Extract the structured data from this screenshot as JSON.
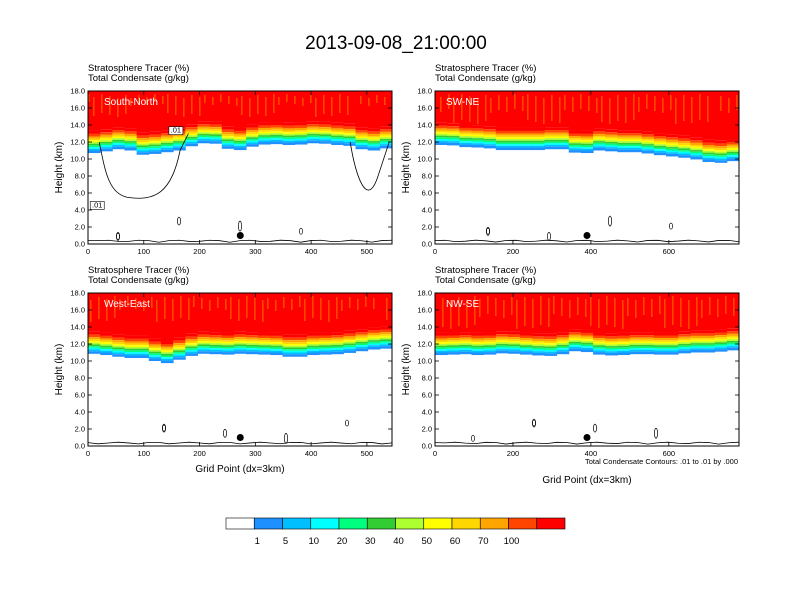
{
  "figure": {
    "title": "2013-09-08_21:00:00",
    "xaxis_label": "Grid Point (dx=3km)",
    "yaxis_label": "Height (km)",
    "contour_note": "Total Condensate Contours: .01 to .01 by .000"
  },
  "colorbar": {
    "colors": [
      "#ffffff",
      "#1e90ff",
      "#00bfff",
      "#00ffff",
      "#00ff7f",
      "#32cd32",
      "#adff2f",
      "#ffff00",
      "#ffd700",
      "#ffa500",
      "#ff4500",
      "#ff0000"
    ],
    "labels": [
      "1",
      "5",
      "10",
      "20",
      "30",
      "40",
      "50",
      "60",
      "70",
      "100"
    ]
  },
  "chart_data": [
    {
      "type": "heatmap",
      "region": "South-North",
      "title_lines": [
        "Stratosphere Tracer   (%)",
        "Total Condensate   (g/kg)"
      ],
      "xlim": [
        0,
        545
      ],
      "xticks": [
        "0",
        "100",
        "200",
        "300",
        "400",
        "500"
      ],
      "ylim": [
        0,
        18
      ],
      "yticks": [
        "0.0",
        "2.0",
        "4.0",
        "6.0",
        "8.0",
        "10.0",
        "12.0",
        "14.0",
        "16.0",
        "18.0"
      ],
      "tropopause_km": [
        13.2,
        13.4,
        13.6,
        13.9,
        13.3,
        12.9,
        13.5,
        13.3,
        13.9,
        14.3,
        14.6,
        14.2,
        13.4,
        13.9,
        14.2,
        14.4,
        14.3,
        14.2,
        14.4,
        14.5,
        14.3,
        14.2,
        14.1,
        13.4,
        13.8,
        13.9
      ],
      "contour_labels": [
        ".01",
        ".01"
      ],
      "marker": {
        "x": 273,
        "y": 1.0
      }
    },
    {
      "type": "heatmap",
      "region": "SW-NE",
      "title_lines": [
        "Stratosphere Tracer   (%)",
        "Total Condensate   (g/kg)"
      ],
      "xlim": [
        0,
        780
      ],
      "xticks": [
        "0",
        "200",
        "400",
        "600"
      ],
      "ylim": [
        0,
        18
      ],
      "yticks": [
        "0.0",
        "2.0",
        "4.0",
        "6.0",
        "8.0",
        "10.0",
        "12.0",
        "14.0",
        "16.0",
        "18.0"
      ],
      "tropopause_km": [
        14.2,
        14.3,
        14.1,
        13.9,
        14.0,
        13.7,
        13.6,
        13.7,
        13.6,
        13.7,
        13.8,
        13.7,
        13.0,
        13.6,
        13.6,
        13.4,
        13.4,
        13.4,
        13.1,
        13.0,
        12.8,
        12.7,
        12.4,
        12.1,
        12.2,
        12.5
      ],
      "contour_labels": [],
      "marker": {
        "x": 390,
        "y": 1.0
      }
    },
    {
      "type": "heatmap",
      "region": "West-East",
      "title_lines": [
        "Stratosphere Tracer   (%)",
        "Total Condensate   (g/kg)"
      ],
      "xlim": [
        0,
        545
      ],
      "xticks": [
        "0",
        "100",
        "200",
        "300",
        "400",
        "500"
      ],
      "ylim": [
        0,
        18
      ],
      "yticks": [
        "0.0",
        "2.0",
        "4.0",
        "6.0",
        "8.0",
        "10.0",
        "12.0",
        "14.0",
        "16.0",
        "18.0"
      ],
      "tropopause_km": [
        13.5,
        13.4,
        13.2,
        13.0,
        12.9,
        13.0,
        12.2,
        12.5,
        13.0,
        13.4,
        13.5,
        13.3,
        13.4,
        13.5,
        13.3,
        13.4,
        13.2,
        13.0,
        13.2,
        13.4,
        13.3,
        13.5,
        13.6,
        13.9,
        14.0,
        14.1
      ],
      "contour_labels": [],
      "marker": {
        "x": 273,
        "y": 1.0
      }
    },
    {
      "type": "heatmap",
      "region": "NW-SE",
      "title_lines": [
        "Stratosphere Tracer   (%)",
        "Total Condensate   (g/kg)"
      ],
      "xlim": [
        0,
        780
      ],
      "xticks": [
        "0",
        "200",
        "400",
        "600"
      ],
      "ylim": [
        0,
        18
      ],
      "yticks": [
        "0.0",
        "2.0",
        "4.0",
        "6.0",
        "8.0",
        "10.0",
        "12.0",
        "14.0",
        "16.0",
        "18.0"
      ],
      "tropopause_km": [
        13.3,
        13.3,
        13.4,
        13.4,
        13.2,
        13.5,
        13.5,
        13.4,
        13.3,
        13.2,
        13.2,
        13.6,
        13.9,
        13.4,
        13.3,
        13.2,
        13.4,
        13.4,
        13.4,
        13.3,
        13.4,
        13.6,
        13.6,
        13.6,
        13.8,
        13.9
      ],
      "contour_labels": [],
      "marker": {
        "x": 390,
        "y": 1.0
      }
    }
  ]
}
